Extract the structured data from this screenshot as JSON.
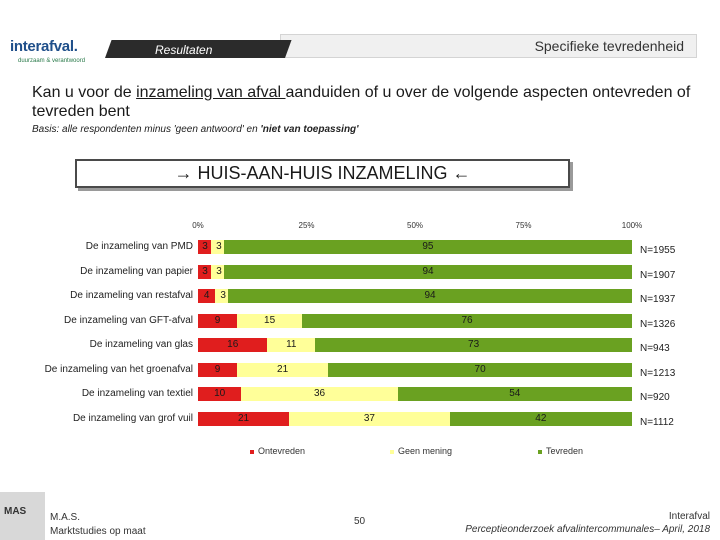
{
  "logo": {
    "name": "interafval.",
    "tagline": "duurzaam & verantwoord"
  },
  "header": {
    "section": "Resultaten",
    "title": "Specifieke tevredenheid"
  },
  "question": {
    "pre": "Kan u voor de ",
    "underlined": "inzameling van afval ",
    "post": "aanduiden of u over de volgende aspecten ontevreden of tevreden bent"
  },
  "basis": {
    "prefix": "Basis: alle respondenten minus 'geen antwoord' en ",
    "bold": "'niet van toepassing'"
  },
  "section_title": "→ HUIS-AAN-HUIS INZAMELING ←",
  "colors": {
    "ontevreden": "#e01e1e",
    "geen_mening": "#ffff99",
    "tevreden": "#6aa121"
  },
  "chart_data": {
    "type": "bar",
    "orientation": "horizontal",
    "stacked": true,
    "x_ticks": [
      "0%",
      "25%",
      "50%",
      "75%",
      "100%"
    ],
    "xlim": [
      0,
      100
    ],
    "categories": [
      "De inzameling van PMD",
      "De inzameling van papier",
      "De inzameling van restafval",
      "De inzameling van GFT-afval",
      "De inzameling van glas",
      "De inzameling van het groenafval",
      "De inzameling van textiel",
      "De inzameling van grof vuil"
    ],
    "series": [
      {
        "name": "Ontevreden",
        "values": [
          3,
          3,
          4,
          9,
          16,
          9,
          10,
          21
        ]
      },
      {
        "name": "Geen mening",
        "values": [
          3,
          3,
          3,
          15,
          11,
          21,
          36,
          37
        ]
      },
      {
        "name": "Tevreden",
        "values": [
          95,
          94,
          94,
          76,
          73,
          70,
          54,
          42
        ]
      }
    ],
    "n_labels": [
      "N=1955",
      "N=1907",
      "N=1937",
      "N=1326",
      "N=943",
      "N=1213",
      "N=920",
      "N=1112"
    ],
    "legend": [
      "Ontevreden",
      "Geen mening",
      "Tevreden"
    ]
  },
  "footer": {
    "company_line1": "M.A.S.",
    "company_line2": "Marktstudies op maat",
    "page": "50",
    "right_line1": "Interafval",
    "right_line2": "Perceptieonderzoek afvalintercommunales– April, 2018",
    "mas_mark": "MAS"
  }
}
